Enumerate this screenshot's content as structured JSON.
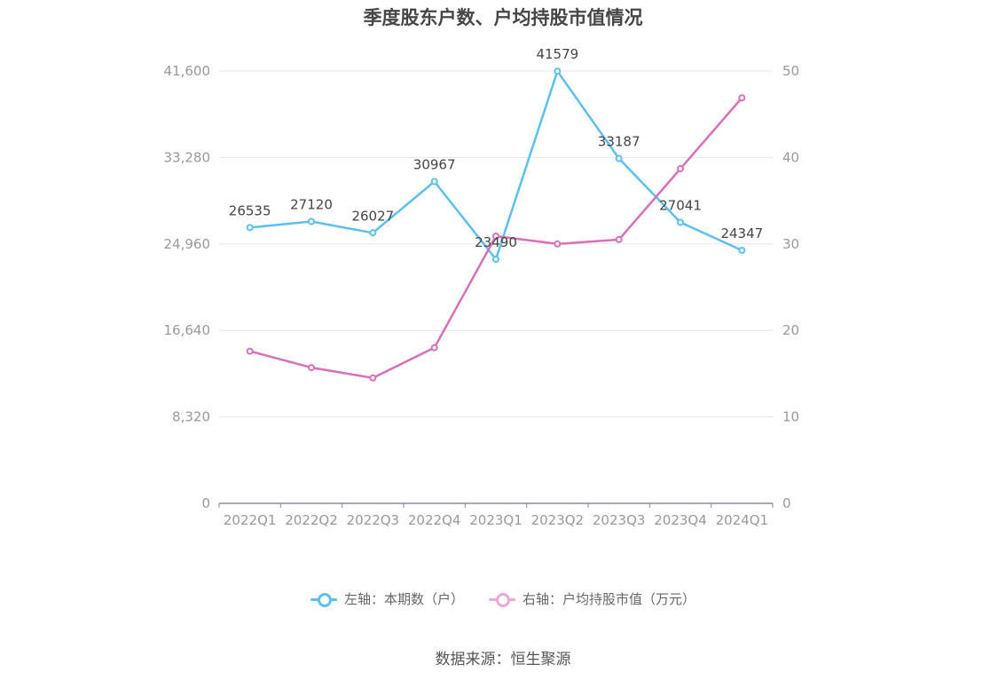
{
  "chart_data": {
    "type": "line",
    "title": "季度股东户数、户均持股市值情况",
    "categories": [
      "2022Q1",
      "2022Q2",
      "2022Q3",
      "2022Q4",
      "2023Q1",
      "2023Q2",
      "2023Q3",
      "2023Q4",
      "2024Q1"
    ],
    "y_left": {
      "ticks": [
        "0",
        "8,320",
        "16,640",
        "24,960",
        "33,280",
        "41,600"
      ],
      "range": [
        0,
        41600
      ]
    },
    "y_right": {
      "ticks": [
        "0",
        "10",
        "20",
        "30",
        "40",
        "50"
      ],
      "range": [
        0,
        50
      ]
    },
    "series": [
      {
        "name": "左轴：本期数（户）",
        "axis": "left",
        "color": "#5bc0f0",
        "values": [
          26535,
          27120,
          26027,
          30967,
          23490,
          41579,
          33187,
          27041,
          24347
        ],
        "labels": [
          "26535",
          "27120",
          "26027",
          "30967",
          "23490",
          "41579",
          "33187",
          "27041",
          "24347"
        ]
      },
      {
        "name": "右轴：户均持股市值（万元）",
        "axis": "right",
        "color": "#d96fb6",
        "values": [
          17.6,
          15.7,
          14.5,
          18.0,
          30.9,
          30.0,
          30.5,
          38.7,
          46.9
        ]
      }
    ],
    "grid": true,
    "legend_position": "bottom"
  },
  "source_text": "数据来源：恒生聚源"
}
